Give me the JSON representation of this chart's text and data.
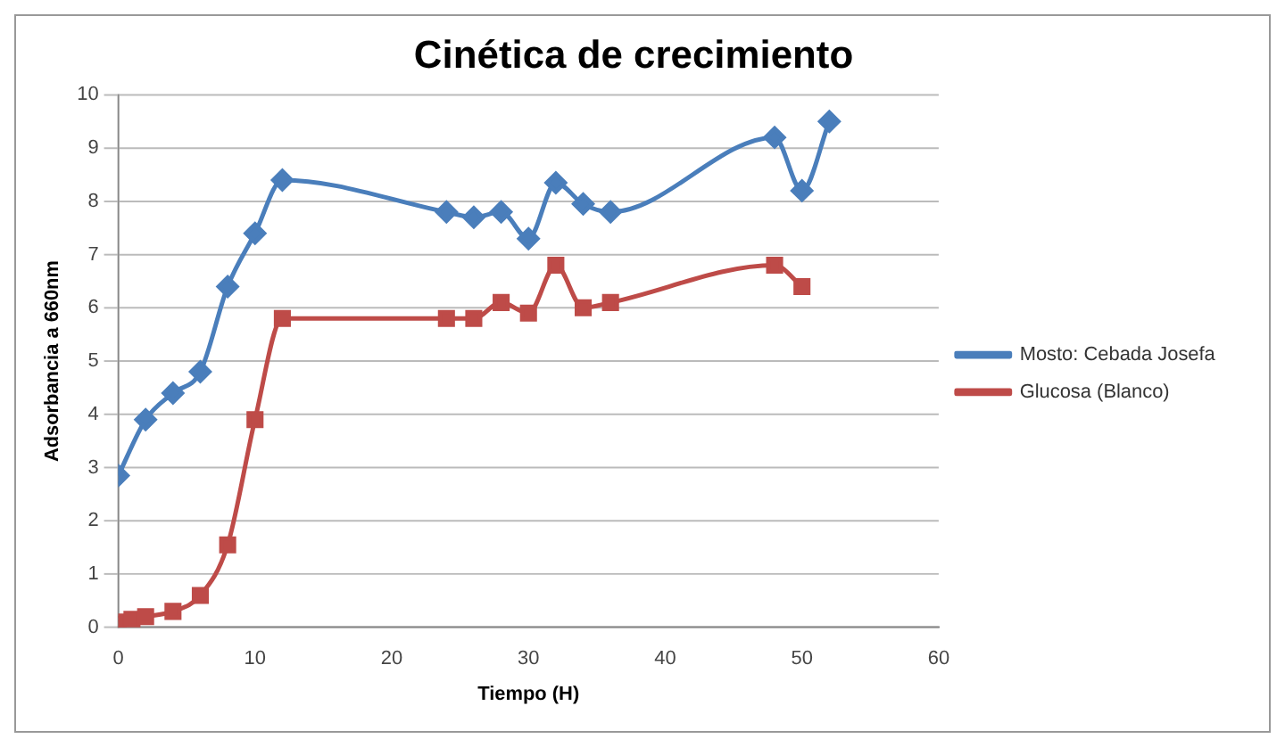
{
  "chart_data": {
    "type": "line",
    "title": "Cinética de crecimiento",
    "xlabel": "Tiempo (H)",
    "ylabel": "Adsorbancia a 660nm",
    "xlim": [
      0,
      60
    ],
    "xticks": [
      0,
      10,
      20,
      30,
      40,
      50,
      60
    ],
    "ylim": [
      0,
      10
    ],
    "yticks": [
      0,
      1,
      2,
      3,
      4,
      5,
      6,
      7,
      8,
      9,
      10
    ],
    "grid": "y",
    "legend": "right",
    "series": [
      {
        "name": "Mosto: Cebada Josefa",
        "color": "#4a7ebb",
        "marker": "diamond",
        "x": [
          0,
          2,
          4,
          6,
          8,
          10,
          12,
          24,
          26,
          28,
          30,
          32,
          34,
          36,
          48,
          50,
          52
        ],
        "values": [
          2.85,
          3.9,
          4.4,
          4.8,
          6.4,
          7.4,
          8.4,
          7.8,
          7.7,
          7.8,
          7.3,
          8.35,
          7.95,
          7.8,
          9.2,
          8.2,
          9.5
        ]
      },
      {
        "name": "Glucosa (Blanco)",
        "color": "#be4b48",
        "marker": "square",
        "x": [
          0,
          1,
          2,
          4,
          6,
          8,
          10,
          12,
          24,
          26,
          28,
          30,
          32,
          34,
          36,
          48,
          50
        ],
        "values": [
          0.1,
          0.15,
          0.2,
          0.3,
          0.6,
          1.55,
          3.9,
          5.8,
          5.8,
          5.8,
          6.1,
          5.9,
          6.8,
          6.0,
          6.1,
          6.8,
          6.4
        ]
      }
    ]
  }
}
